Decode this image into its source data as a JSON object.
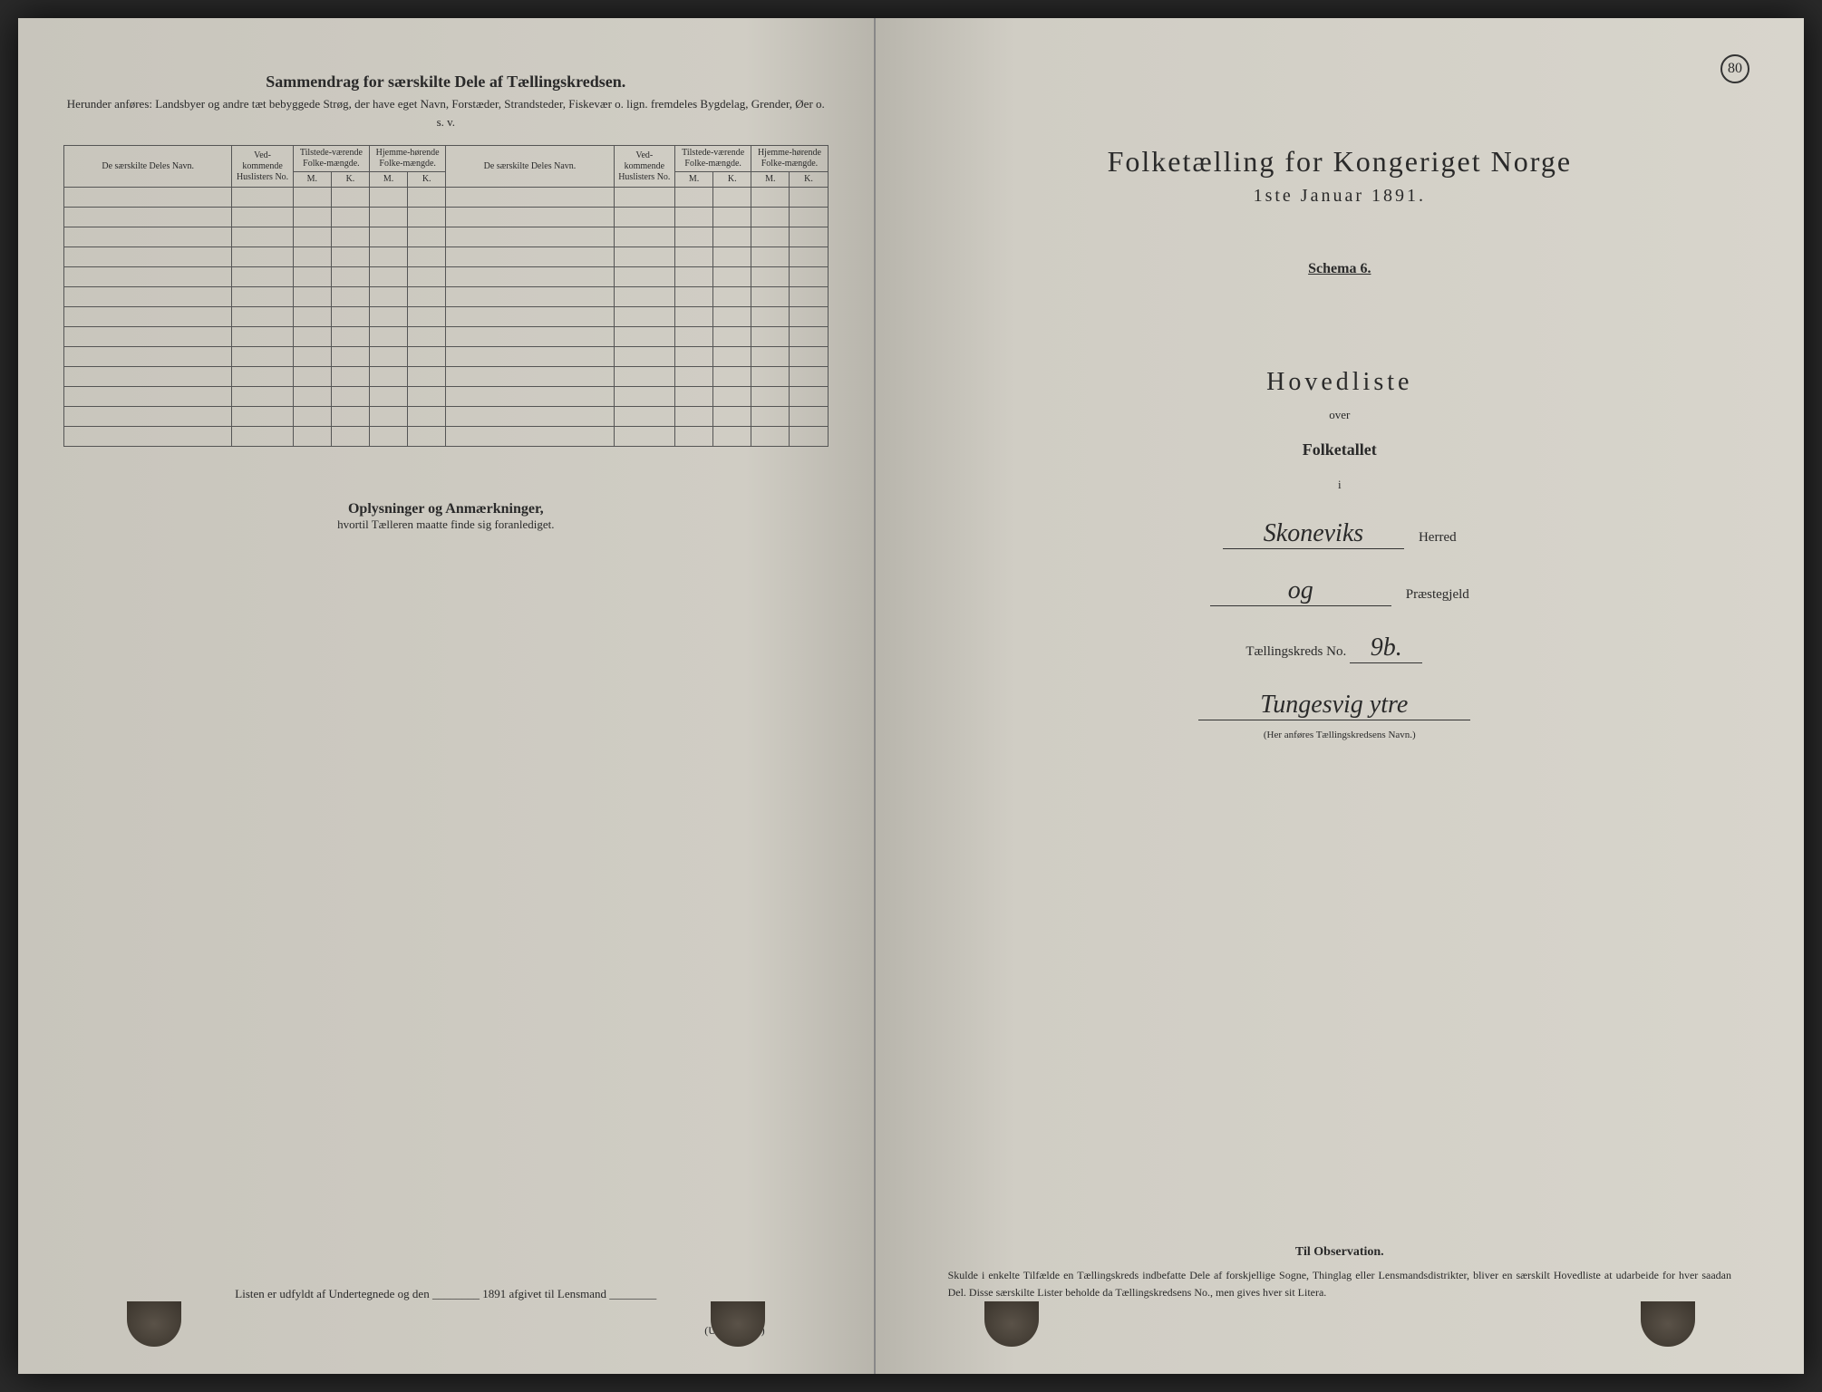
{
  "page_number": "80",
  "left_page": {
    "section_title": "Sammendrag for særskilte Dele af Tællingskredsen.",
    "section_subtitle": "Herunder anføres: Landsbyer og andre tæt bebyggede Strøg, der have eget Navn, Forstæder, Strandsteder, Fiskevær o. lign. fremdeles Bygdelag, Grender, Øer o. s. v.",
    "table": {
      "headers": {
        "col1": "De særskilte Deles Navn.",
        "col2": "Ved-kommende Huslisters No.",
        "col3": "Tilstede-værende Folke-mængde.",
        "col4": "Hjemme-hørende Folke-mængde.",
        "col5": "De særskilte Deles Navn.",
        "col6": "Ved-kommende Huslisters No.",
        "col7": "Tilstede-værende Folke-mængde.",
        "col8": "Hjemme-hørende Folke-mængde.",
        "sub_m": "M.",
        "sub_k": "K."
      },
      "row_count": 13
    },
    "notes_title": "Oplysninger og Anmærkninger,",
    "notes_subtitle": "hvortil Tælleren maatte finde sig foranlediget.",
    "footer_text": "Listen er udfyldt af Undertegnede og den ________ 1891 afgivet til Lensmand ________",
    "signature_label": "(Underskrift.)"
  },
  "right_page": {
    "title": "Folketælling for Kongeriget Norge",
    "date": "1ste Januar 1891.",
    "schema": "Schema 6.",
    "hovedliste": "Hovedliste",
    "over": "over",
    "folketallet": "Folketallet",
    "i": "i",
    "herred_value": "Skoneviks",
    "herred_label": "Herred",
    "praestegjeld_value": "og",
    "praestegjeld_label": "Præstegjeld",
    "kreds_label": "Tællingskreds No.",
    "kreds_value": "9b.",
    "kreds_name": "Tungesvig ytre",
    "kreds_caption": "(Her anføres Tællingskredsens Navn.)",
    "observation_title": "Til Observation.",
    "observation_text": "Skulde i enkelte Tilfælde en Tællingskreds indbefatte Dele af forskjellige Sogne, Thinglag eller Lensmandsdistrikter, bliver en særskilt Hovedliste at udarbeide for hver saadan Del. Disse særskilte Lister beholde da Tællingskredsens No., men gives hver sit Litera."
  },
  "colors": {
    "paper": "#d0cdc4",
    "ink": "#2a2a2a",
    "border": "#555555",
    "background": "#2a2a2a"
  }
}
